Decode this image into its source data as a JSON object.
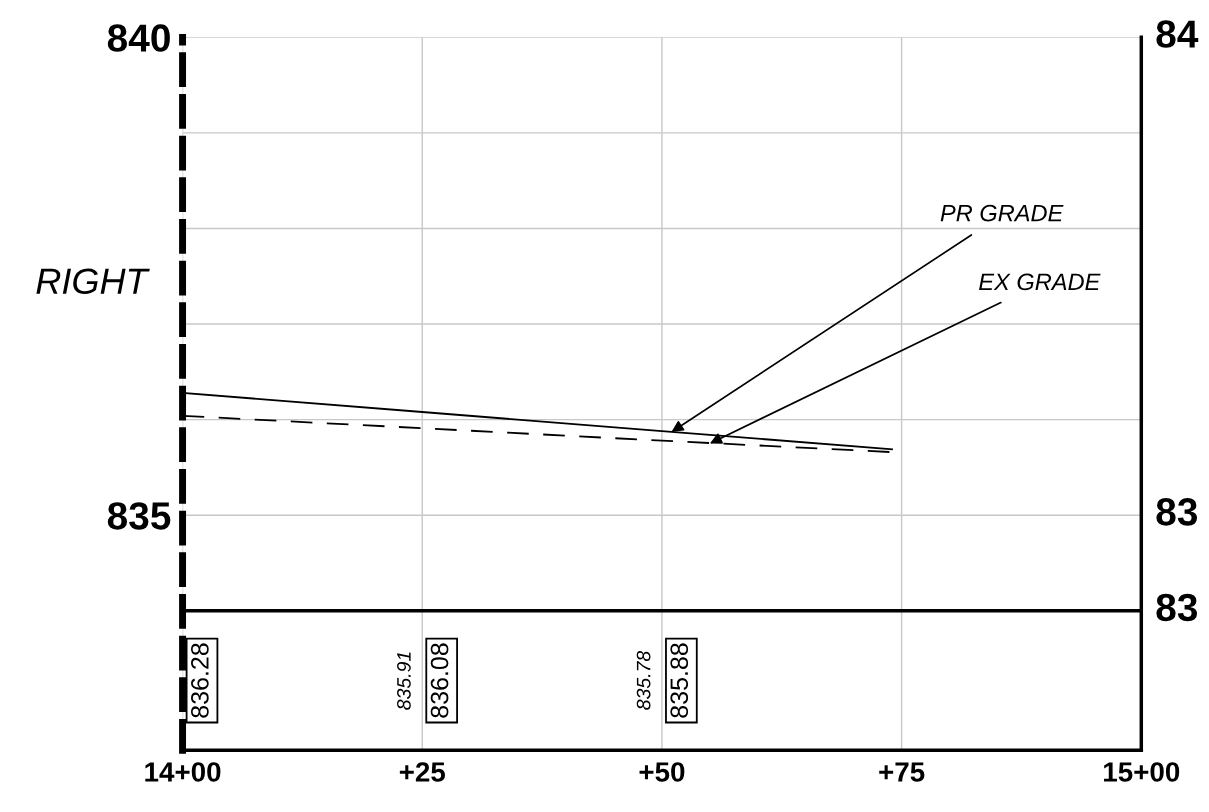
{
  "chart_data": {
    "type": "line",
    "ylabel": "RIGHT",
    "xlim": [
      0,
      100
    ],
    "xticks": [
      {
        "value": 0,
        "label": "14+00"
      },
      {
        "value": 25,
        "label": "+25"
      },
      {
        "value": 50,
        "label": "+50"
      },
      {
        "value": 75,
        "label": "+75"
      },
      {
        "value": 100,
        "label": "15+00"
      }
    ],
    "ylim": [
      832.54,
      840
    ],
    "yticks": [
      835,
      {
        "value": 836,
        "label": null
      },
      {
        "value": 837,
        "label": null
      },
      {
        "value": 838,
        "label": null
      },
      {
        "value": 839,
        "label": null
      },
      840
    ],
    "grid": true,
    "marker": "none",
    "series": [
      {
        "color": "#000000",
        "line_style": "solid",
        "x": [
          0,
          25,
          50,
          74
        ],
        "values": [
          836.28,
          836.08,
          835.88,
          835.69
        ]
      },
      {
        "color": "#000000",
        "line_style": "dashed",
        "x": [
          0,
          25,
          50,
          74
        ],
        "values": [
          836.04,
          835.91,
          835.78,
          835.66
        ]
      }
    ],
    "ref_lines": [
      {
        "axis": "y",
        "value": 834,
        "color": "#000000"
      }
    ],
    "annotations": [
      {
        "text": "PR GRADE",
        "x": 51,
        "y": 835.87
      },
      {
        "text": "EX GRADE",
        "x": 55,
        "y": 835.75
      },
      "84",
      "83",
      "83",
      "836.28",
      "835.91",
      "836.08",
      "835.78",
      "835.88"
    ]
  }
}
